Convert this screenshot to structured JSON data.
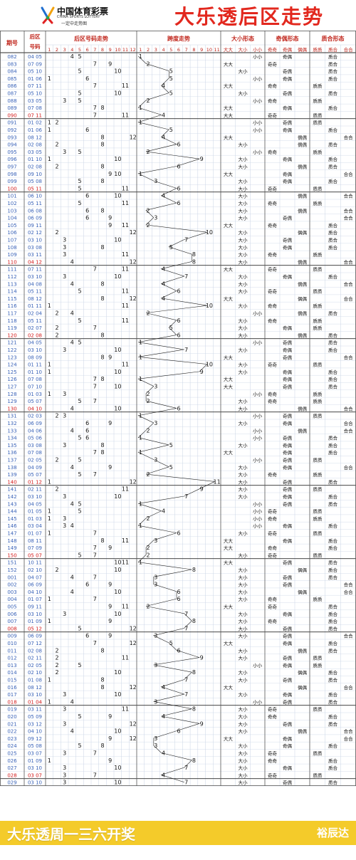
{
  "header": {
    "logo_cn": "中国体育彩票",
    "logo_en": "CHINA SPORTS LOTTERY",
    "logo_sub": "一定中走势图",
    "title": "大乐透后区走势"
  },
  "footer": {
    "left": "大乐透周一三六开奖",
    "right": "裕辰达"
  },
  "table": {
    "headers": {
      "issue": "期号",
      "back_num1": "后区",
      "back_num2": "号码",
      "trend": "后区号码走势",
      "span": "跨度走势",
      "size": "大小形态",
      "parity": "奇偶形态",
      "prime": "质合形态"
    },
    "trend_cols": [
      "1",
      "2",
      "3",
      "4",
      "5",
      "6",
      "7",
      "8",
      "9",
      "10",
      "11",
      "12"
    ],
    "span_cols": [
      "1",
      "2",
      "3",
      "4",
      "5",
      "6",
      "7",
      "8",
      "9",
      "10",
      "11"
    ],
    "size_cols": [
      "大大",
      "大小",
      "小小"
    ],
    "parity_cols": [
      "奇奇",
      "奇偶",
      "偶偶"
    ],
    "prime_cols": [
      "质质",
      "质合",
      "合合"
    ],
    "rows": [
      {
        "issue": "082",
        "nums": "04 05"
      },
      {
        "issue": "083",
        "nums": "07 09"
      },
      {
        "issue": "084",
        "nums": "05 10"
      },
      {
        "issue": "085",
        "nums": "01 06"
      },
      {
        "issue": "086",
        "nums": "07 11"
      },
      {
        "issue": "087",
        "nums": "05 10"
      },
      {
        "issue": "088",
        "nums": "03 05"
      },
      {
        "issue": "089",
        "nums": "07 08"
      },
      {
        "issue": "090",
        "nums": "07 11"
      },
      {
        "issue": "091",
        "nums": "01 02"
      },
      {
        "issue": "092",
        "nums": "01 06"
      },
      {
        "issue": "093",
        "nums": "08 12"
      },
      {
        "issue": "094",
        "nums": "02 08"
      },
      {
        "issue": "095",
        "nums": "03 05"
      },
      {
        "issue": "096",
        "nums": "01 10"
      },
      {
        "issue": "097",
        "nums": "02 08"
      },
      {
        "issue": "098",
        "nums": "09 10"
      },
      {
        "issue": "099",
        "nums": "05 08"
      },
      {
        "issue": "100",
        "nums": "05 11"
      },
      {
        "issue": "101",
        "nums": "06 10"
      },
      {
        "issue": "102",
        "nums": "05 11"
      },
      {
        "issue": "103",
        "nums": "06 08"
      },
      {
        "issue": "104",
        "nums": "06 09"
      },
      {
        "issue": "105",
        "nums": "09 11"
      },
      {
        "issue": "106",
        "nums": "02 12"
      },
      {
        "issue": "107",
        "nums": "03 10"
      },
      {
        "issue": "108",
        "nums": "03 08"
      },
      {
        "issue": "109",
        "nums": "03 11"
      },
      {
        "issue": "110",
        "nums": "04 12"
      },
      {
        "issue": "111",
        "nums": "07 11"
      },
      {
        "issue": "112",
        "nums": "03 10"
      },
      {
        "issue": "113",
        "nums": "04 08"
      },
      {
        "issue": "114",
        "nums": "05 11"
      },
      {
        "issue": "115",
        "nums": "08 12"
      },
      {
        "issue": "116",
        "nums": "01 11"
      },
      {
        "issue": "117",
        "nums": "02 04"
      },
      {
        "issue": "118",
        "nums": "05 11"
      },
      {
        "issue": "119",
        "nums": "02 07"
      },
      {
        "issue": "120",
        "nums": "02 08"
      },
      {
        "issue": "121",
        "nums": "04 05"
      },
      {
        "issue": "122",
        "nums": "03 10"
      },
      {
        "issue": "123",
        "nums": "08 09"
      },
      {
        "issue": "124",
        "nums": "01 11"
      },
      {
        "issue": "125",
        "nums": "01 10"
      },
      {
        "issue": "126",
        "nums": "07 08"
      },
      {
        "issue": "127",
        "nums": "07 10"
      },
      {
        "issue": "128",
        "nums": "01 03"
      },
      {
        "issue": "129",
        "nums": "05 07"
      },
      {
        "issue": "130",
        "nums": "04 10"
      },
      {
        "issue": "131",
        "nums": "02 03"
      },
      {
        "issue": "132",
        "nums": "06 09"
      },
      {
        "issue": "133",
        "nums": "04 06"
      },
      {
        "issue": "134",
        "nums": "05 06"
      },
      {
        "issue": "135",
        "nums": "03 08"
      },
      {
        "issue": "136",
        "nums": "07 08"
      },
      {
        "issue": "137",
        "nums": "02 05"
      },
      {
        "issue": "138",
        "nums": "04 09"
      },
      {
        "issue": "139",
        "nums": "05 07"
      },
      {
        "issue": "140",
        "nums": "01 12"
      },
      {
        "issue": "141",
        "nums": "02 11"
      },
      {
        "issue": "142",
        "nums": "03 10"
      },
      {
        "issue": "143",
        "nums": "04 05"
      },
      {
        "issue": "144",
        "nums": "01 05"
      },
      {
        "issue": "145",
        "nums": "01 03"
      },
      {
        "issue": "146",
        "nums": "03 04"
      },
      {
        "issue": "147",
        "nums": "01 07"
      },
      {
        "issue": "148",
        "nums": "08 11"
      },
      {
        "issue": "149",
        "nums": "07 09"
      },
      {
        "issue": "150",
        "nums": "05 07"
      },
      {
        "issue": "151",
        "nums": "10 11"
      },
      {
        "issue": "152",
        "nums": "02 10"
      },
      {
        "issue": "001",
        "nums": "04 07"
      },
      {
        "issue": "002",
        "nums": "06 09"
      },
      {
        "issue": "003",
        "nums": "04 10"
      },
      {
        "issue": "004",
        "nums": "01 07"
      },
      {
        "issue": "005",
        "nums": "09 11"
      },
      {
        "issue": "006",
        "nums": "03 10"
      },
      {
        "issue": "007",
        "nums": "01 09"
      },
      {
        "issue": "008",
        "nums": "05 12"
      },
      {
        "issue": "009",
        "nums": "06 09"
      },
      {
        "issue": "010",
        "nums": "07 12"
      },
      {
        "issue": "011",
        "nums": "02 08"
      },
      {
        "issue": "012",
        "nums": "02 11"
      },
      {
        "issue": "013",
        "nums": "02 05"
      },
      {
        "issue": "014",
        "nums": "02 10"
      },
      {
        "issue": "015",
        "nums": "01 08"
      },
      {
        "issue": "016",
        "nums": "08 12"
      },
      {
        "issue": "017",
        "nums": "03 10"
      },
      {
        "issue": "018",
        "nums": "01 04"
      },
      {
        "issue": "019",
        "nums": "03 11"
      },
      {
        "issue": "020",
        "nums": "05 09"
      },
      {
        "issue": "021",
        "nums": "03 12"
      },
      {
        "issue": "022",
        "nums": "04 10"
      },
      {
        "issue": "023",
        "nums": "09 12"
      },
      {
        "issue": "024",
        "nums": "05 08"
      },
      {
        "issue": "025",
        "nums": "03 07"
      },
      {
        "issue": "026",
        "nums": "01 09"
      },
      {
        "issue": "027",
        "nums": "03 10"
      },
      {
        "issue": "028",
        "nums": "03 07"
      },
      {
        "issue": "029",
        "nums": "03 10"
      }
    ]
  },
  "colors": {
    "issue_blue": "#3a63b8",
    "issue_red": "#d41a1a",
    "grid": "#c9d4e6",
    "section_line": "#2b2b2b",
    "title_red": "#e2281e",
    "footer_yellow": "#f4cb2a",
    "header_text": "#c0261c"
  }
}
